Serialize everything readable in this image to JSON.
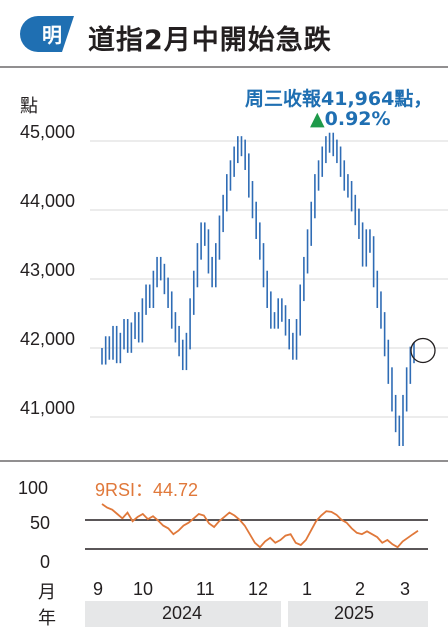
{
  "header": {
    "logo_char": "明",
    "title": "道指2月中開始急跌"
  },
  "annotation": {
    "line1": "周三收報41,964點，",
    "line2_value": "0.92%",
    "triangle": "▲"
  },
  "chart_data": [
    {
      "type": "line",
      "ylabel": "點",
      "yticks": [
        "45,000",
        "44,000",
        "43,000",
        "42,000",
        "41,000"
      ],
      "ylim": [
        40600,
        45200
      ],
      "series": [
        {
          "values": [
            41880,
            42050,
            41950,
            42200,
            41900,
            42100,
            42300,
            42050,
            42250,
            42400,
            42200,
            42600,
            42800,
            42700,
            43000,
            43200,
            43100,
            42900,
            42700,
            42400,
            42200,
            42000,
            41800,
            42100,
            42600,
            43000,
            43400,
            43700,
            43600,
            43200,
            43000,
            43400,
            43800,
            44100,
            44400,
            44600,
            44800,
            44950,
            44900,
            44700,
            44300,
            44000,
            43700,
            43400,
            43000,
            42700,
            42400,
            42400,
            42600,
            42500,
            42300,
            42100,
            41950,
            42300,
            42800,
            43200,
            43600,
            44000,
            44400,
            44600,
            44800,
            44950,
            45000,
            44900,
            44800,
            44600,
            44400,
            44300,
            44100,
            43900,
            43700,
            43300,
            43600,
            43500,
            43000,
            42700,
            42400,
            42000,
            41600,
            41200,
            40900,
            40700,
            41200,
            41600,
            41900,
            41964
          ]
        }
      ],
      "marker": "circle at latest close"
    },
    {
      "type": "line",
      "title": "9RSI：44.72",
      "yticks": [
        "100",
        "50",
        "0"
      ],
      "ylim": [
        0,
        100
      ],
      "reference_lines": [
        70,
        30
      ],
      "series": [
        {
          "values": [
            82,
            77,
            74,
            68,
            62,
            70,
            58,
            64,
            68,
            61,
            65,
            59,
            52,
            48,
            40,
            45,
            52,
            56,
            62,
            68,
            66,
            55,
            50,
            58,
            64,
            70,
            66,
            60,
            52,
            40,
            28,
            22,
            30,
            35,
            28,
            32,
            38,
            40,
            28,
            25,
            32,
            45,
            58,
            66,
            72,
            71,
            67,
            60,
            56,
            48,
            42,
            40,
            44,
            40,
            36,
            28,
            32,
            26,
            22,
            30,
            35,
            40,
            44.72
          ]
        }
      ],
      "color": "#e0783a"
    }
  ],
  "xaxis": {
    "month_label": "月",
    "year_label": "年",
    "months": [
      "9",
      "10",
      "11",
      "12",
      "1",
      "2",
      "3"
    ],
    "years": [
      "2024",
      "2025"
    ]
  },
  "colors": {
    "price": "#2f6cb5",
    "rsi": "#e0783a",
    "accent": "#1f6fb2",
    "up": "#1e9a4a",
    "logo_bg": "#1f6fb2"
  }
}
